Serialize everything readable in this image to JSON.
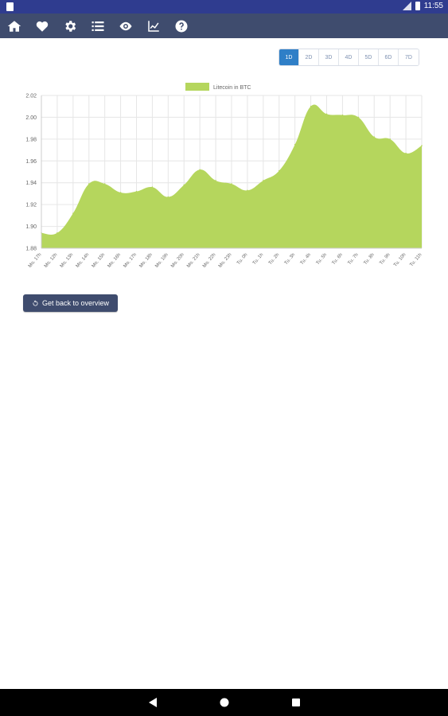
{
  "status_bar": {
    "time": "11:55"
  },
  "toolbar": {
    "icons": [
      "home-icon",
      "heart-icon",
      "gear-icon",
      "list-icon",
      "eye-icon",
      "chart-icon",
      "help-icon"
    ],
    "bg_color": "#3f4c6e"
  },
  "range_selector": {
    "options": [
      "1D",
      "2D",
      "3D",
      "4D",
      "5D",
      "6D",
      "7D"
    ],
    "selected": "1D",
    "accent": "#2f7fc7"
  },
  "chart_data": {
    "type": "area",
    "legend": "Litecoin in BTC",
    "legend_position": "top",
    "color": "#b5d65d",
    "grid": true,
    "ylim": [
      1.88,
      2.02
    ],
    "yticks": [
      "2.02",
      "2.00",
      "1.98",
      "1.96",
      "1.94",
      "1.92",
      "1.90",
      "1.88"
    ],
    "categories": [
      "Mo. 17h",
      "Mo. 12h",
      "Mo. 13h",
      "Mo. 14h",
      "Mo. 15h",
      "Mo. 16h",
      "Mo. 17h",
      "Mo. 18h",
      "Mo. 19h",
      "Mo. 20h",
      "Mo. 21h",
      "Mo. 22h",
      "Mo. 23h",
      "Tu. 0h",
      "Tu. 1h",
      "Tu. 2h",
      "Tu. 3h",
      "Tu. 4h",
      "Tu. 5h",
      "Tu. 6h",
      "Tu. 7h",
      "Tu. 8h",
      "Tu. 9h",
      "Tu. 10h",
      "Tu. 11h"
    ],
    "values": [
      1.894,
      1.894,
      1.912,
      1.939,
      1.939,
      1.931,
      1.932,
      1.936,
      1.927,
      1.938,
      1.952,
      1.942,
      1.939,
      1.933,
      1.942,
      1.951,
      1.975,
      2.01,
      2.003,
      2.002,
      2.0,
      1.982,
      1.98,
      1.967,
      1.974
    ]
  },
  "back_button": {
    "label": "Get back to overview"
  }
}
